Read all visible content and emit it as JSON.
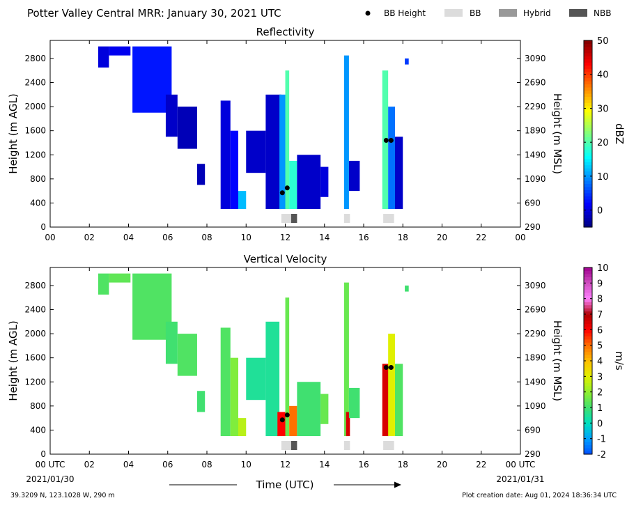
{
  "header": {
    "title": "Potter Valley Central MRR:  January 30, 2021 UTC",
    "legend": [
      {
        "label": "BB Height",
        "kind": "dot",
        "color": "#000000"
      },
      {
        "label": "BB",
        "kind": "swatch",
        "color": "#dcdcdc"
      },
      {
        "label": "Hybrid",
        "kind": "swatch",
        "color": "#999999"
      },
      {
        "label": "NBB",
        "kind": "swatch",
        "color": "#555555"
      }
    ]
  },
  "footer": {
    "location": "39.3209 N, 123.1028 W, 290 m",
    "created": "Plot creation date: Aug 01, 2024 18:36:34 UTC",
    "xlabel": "Time (UTC)",
    "start_date": "2021/01/30",
    "end_date": "2021/01/31"
  },
  "chart_data": [
    {
      "type": "heatmap",
      "title": "Reflectivity",
      "ylabel": "Height (m AGL)",
      "ylabel_right": "Height (m MSL)",
      "x_ticks": [
        "00",
        "02",
        "04",
        "06",
        "08",
        "10",
        "12",
        "14",
        "16",
        "18",
        "20",
        "22",
        "00"
      ],
      "xlim_hours": [
        0,
        24
      ],
      "ylim_m_agl": [
        0,
        3100
      ],
      "y_ticks": [
        0,
        400,
        800,
        1200,
        1600,
        2000,
        2400,
        2800
      ],
      "y_ticks_right": [
        290,
        690,
        1090,
        1490,
        1890,
        2290,
        2690,
        3090
      ],
      "colorbar": {
        "label": "dBZ",
        "min": -5,
        "max": 50,
        "ticks": [
          0,
          10,
          20,
          30,
          40,
          50
        ],
        "colors": [
          "#00007f",
          "#0000ff",
          "#007fff",
          "#00ffff",
          "#7fff7f",
          "#ffff00",
          "#ff7f00",
          "#ff0000",
          "#7f0000"
        ]
      },
      "echo_cells": [
        {
          "t": [
            2.45,
            3.0
          ],
          "z": [
            2650,
            3000
          ],
          "v": 0
        },
        {
          "t": [
            3.0,
            4.1
          ],
          "z": [
            2850,
            3000
          ],
          "v": 1
        },
        {
          "t": [
            4.2,
            6.2
          ],
          "z": [
            1900,
            3000
          ],
          "v": 3
        },
        {
          "t": [
            5.9,
            6.5
          ],
          "z": [
            1500,
            2200
          ],
          "v": -1
        },
        {
          "t": [
            6.5,
            7.5
          ],
          "z": [
            1300,
            2000
          ],
          "v": -2
        },
        {
          "t": [
            7.5,
            7.9
          ],
          "z": [
            700,
            1050
          ],
          "v": -2
        },
        {
          "t": [
            8.7,
            9.2
          ],
          "z": [
            300,
            2100
          ],
          "v": 0
        },
        {
          "t": [
            9.2,
            9.6
          ],
          "z": [
            300,
            1600
          ],
          "v": 2
        },
        {
          "t": [
            9.6,
            10.0
          ],
          "z": [
            300,
            600
          ],
          "v": 12
        },
        {
          "t": [
            10.0,
            11.0
          ],
          "z": [
            900,
            1600
          ],
          "v": -1
        },
        {
          "t": [
            11.0,
            11.8
          ],
          "z": [
            300,
            2200
          ],
          "v": -1
        },
        {
          "t": [
            11.7,
            12.0
          ],
          "z": [
            300,
            2200
          ],
          "v": 10
        },
        {
          "t": [
            12.0,
            12.2
          ],
          "z": [
            300,
            2600
          ],
          "v": 20
        },
        {
          "t": [
            12.2,
            12.6
          ],
          "z": [
            300,
            1100
          ],
          "v": 18
        },
        {
          "t": [
            12.6,
            13.8
          ],
          "z": [
            300,
            1200
          ],
          "v": -1
        },
        {
          "t": [
            13.8,
            14.2
          ],
          "z": [
            500,
            1000
          ],
          "v": 0
        },
        {
          "t": [
            15.0,
            15.25
          ],
          "z": [
            300,
            2850
          ],
          "v": 10
        },
        {
          "t": [
            15.25,
            15.8
          ],
          "z": [
            600,
            1100
          ],
          "v": -1
        },
        {
          "t": [
            16.95,
            17.25
          ],
          "z": [
            300,
            2600
          ],
          "v": 20
        },
        {
          "t": [
            17.25,
            17.6
          ],
          "z": [
            300,
            2000
          ],
          "v": 8
        },
        {
          "t": [
            17.6,
            18.0
          ],
          "z": [
            300,
            1500
          ],
          "v": -1
        },
        {
          "t": [
            18.1,
            18.3
          ],
          "z": [
            2700,
            2800
          ],
          "v": 5
        }
      ],
      "bb_height_points": [
        {
          "t": 11.85,
          "z": 570
        },
        {
          "t": 12.1,
          "z": 650
        },
        {
          "t": 17.15,
          "z": 1440
        },
        {
          "t": 17.4,
          "z": 1440
        }
      ],
      "bb_type_bars": [
        {
          "t": [
            11.8,
            12.3
          ],
          "type": "BB"
        },
        {
          "t": [
            12.3,
            12.6
          ],
          "type": "NBB"
        },
        {
          "t": [
            15.0,
            15.3
          ],
          "type": "BB"
        },
        {
          "t": [
            17.0,
            17.55
          ],
          "type": "BB"
        }
      ]
    },
    {
      "type": "heatmap",
      "title": "Vertical Velocity",
      "ylabel": "Height (m AGL)",
      "ylabel_right": "Height (m MSL)",
      "x_ticks": [
        "00 UTC",
        "02",
        "04",
        "06",
        "08",
        "10",
        "12",
        "14",
        "16",
        "18",
        "20",
        "22",
        "00 UTC"
      ],
      "xlim_hours": [
        0,
        24
      ],
      "ylim_m_agl": [
        0,
        3100
      ],
      "y_ticks": [
        0,
        400,
        800,
        1200,
        1600,
        2000,
        2400,
        2800
      ],
      "y_ticks_right": [
        290,
        690,
        1090,
        1490,
        1890,
        2290,
        2690,
        3090
      ],
      "colorbar": {
        "label": "m/s",
        "min": -2,
        "max": 10,
        "ticks": [
          -2,
          -1,
          0,
          1,
          2,
          3,
          4,
          5,
          6,
          7,
          8,
          9,
          10
        ],
        "colors": [
          "#0050ff",
          "#00a0ff",
          "#00e0c0",
          "#40e070",
          "#90f030",
          "#e0f000",
          "#ffc000",
          "#ff7000",
          "#ff0000",
          "#b00000",
          "#ff80ff",
          "#d050c0",
          "#a00090"
        ]
      },
      "echo_cells": [
        {
          "t": [
            2.45,
            3.0
          ],
          "z": [
            2650,
            3000
          ],
          "v": 1.2
        },
        {
          "t": [
            3.0,
            4.1
          ],
          "z": [
            2850,
            3000
          ],
          "v": 1.4
        },
        {
          "t": [
            4.2,
            6.2
          ],
          "z": [
            1900,
            3000
          ],
          "v": 1.2
        },
        {
          "t": [
            5.9,
            6.5
          ],
          "z": [
            1500,
            2200
          ],
          "v": 1.0
        },
        {
          "t": [
            6.5,
            7.5
          ],
          "z": [
            1300,
            2000
          ],
          "v": 1.2
        },
        {
          "t": [
            7.5,
            7.9
          ],
          "z": [
            700,
            1050
          ],
          "v": 1.0
        },
        {
          "t": [
            8.7,
            9.2
          ],
          "z": [
            300,
            2100
          ],
          "v": 1.2
        },
        {
          "t": [
            9.2,
            9.6
          ],
          "z": [
            300,
            1600
          ],
          "v": 1.8
        },
        {
          "t": [
            9.6,
            10.0
          ],
          "z": [
            300,
            600
          ],
          "v": 2.5
        },
        {
          "t": [
            10.0,
            11.0
          ],
          "z": [
            900,
            1600
          ],
          "v": 0.5
        },
        {
          "t": [
            11.0,
            11.7
          ],
          "z": [
            300,
            2200
          ],
          "v": 0.5
        },
        {
          "t": [
            11.6,
            12.0
          ],
          "z": [
            300,
            700
          ],
          "v": 6.0
        },
        {
          "t": [
            12.0,
            12.2
          ],
          "z": [
            300,
            2600
          ],
          "v": 1.5
        },
        {
          "t": [
            12.2,
            12.6
          ],
          "z": [
            300,
            800
          ],
          "v": 5.0
        },
        {
          "t": [
            12.6,
            13.8
          ],
          "z": [
            300,
            1200
          ],
          "v": 1.0
        },
        {
          "t": [
            13.8,
            14.2
          ],
          "z": [
            500,
            1000
          ],
          "v": 1.5
        },
        {
          "t": [
            15.0,
            15.25
          ],
          "z": [
            300,
            2850
          ],
          "v": 1.5
        },
        {
          "t": [
            15.1,
            15.3
          ],
          "z": [
            300,
            700
          ],
          "v": 6.5
        },
        {
          "t": [
            15.25,
            15.8
          ],
          "z": [
            600,
            1100
          ],
          "v": 1.0
        },
        {
          "t": [
            16.95,
            17.3
          ],
          "z": [
            300,
            1500
          ],
          "v": 6.5
        },
        {
          "t": [
            17.25,
            17.6
          ],
          "z": [
            300,
            2000
          ],
          "v": 3.0
        },
        {
          "t": [
            17.6,
            18.0
          ],
          "z": [
            300,
            1500
          ],
          "v": 1.2
        },
        {
          "t": [
            18.1,
            18.3
          ],
          "z": [
            2700,
            2800
          ],
          "v": 1.0
        }
      ],
      "bb_height_points": [
        {
          "t": 11.85,
          "z": 570
        },
        {
          "t": 12.1,
          "z": 650
        },
        {
          "t": 17.15,
          "z": 1440
        },
        {
          "t": 17.4,
          "z": 1440
        }
      ],
      "bb_type_bars": [
        {
          "t": [
            11.8,
            12.3
          ],
          "type": "BB"
        },
        {
          "t": [
            12.3,
            12.6
          ],
          "type": "NBB"
        },
        {
          "t": [
            15.0,
            15.3
          ],
          "type": "BB"
        },
        {
          "t": [
            17.0,
            17.55
          ],
          "type": "BB"
        }
      ]
    }
  ]
}
